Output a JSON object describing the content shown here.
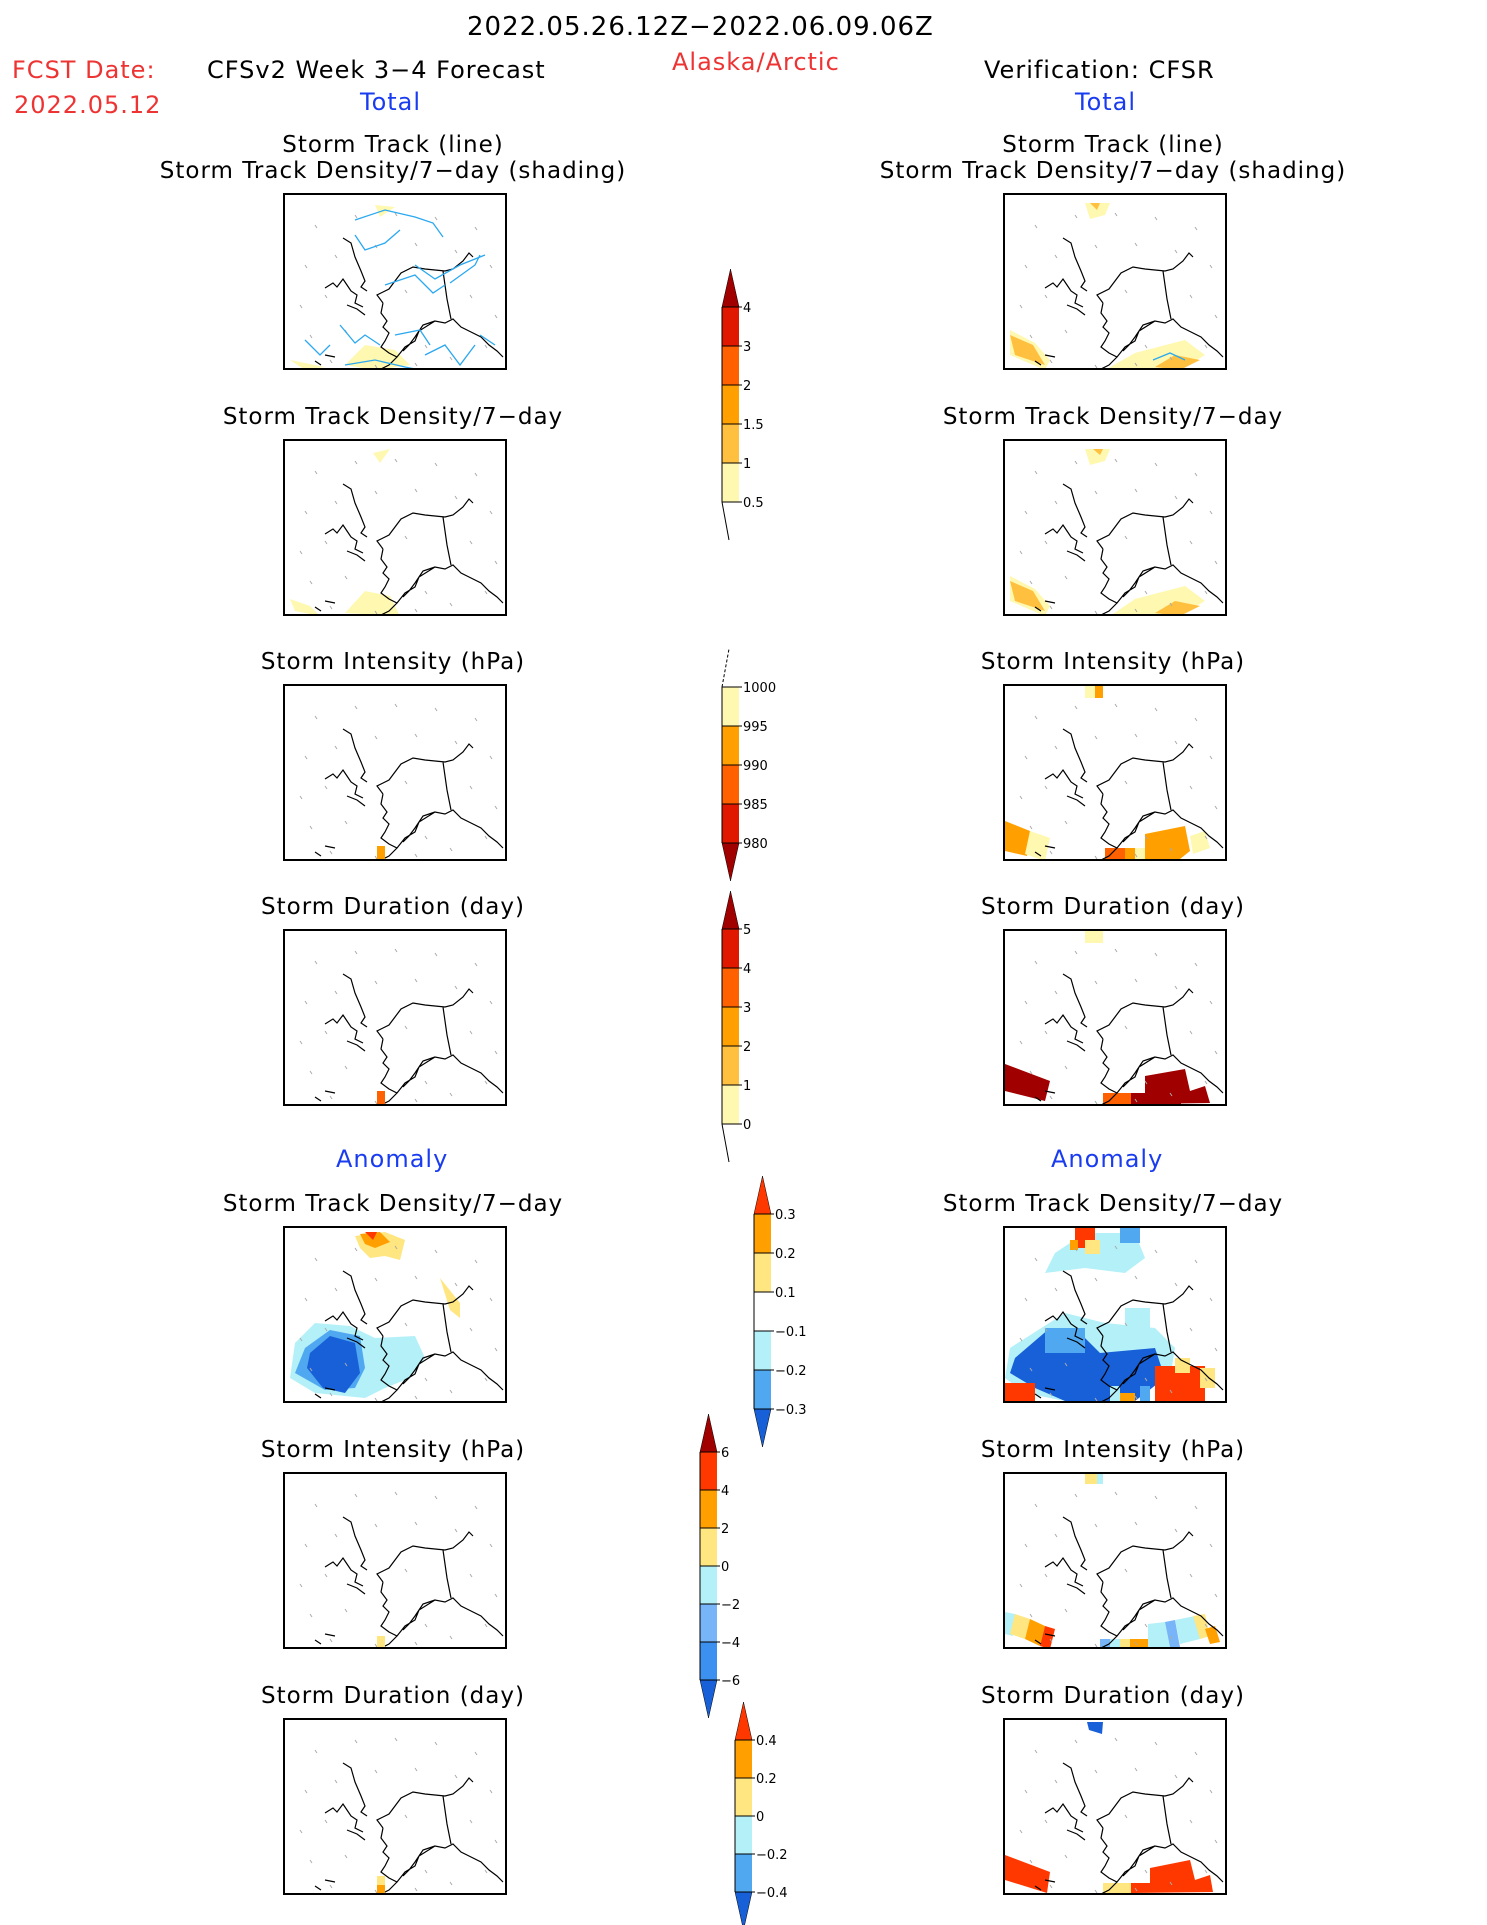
{
  "header": {
    "period": "2022.05.26.12Z−2022.06.09.06Z",
    "region": "Alaska/Arctic",
    "fcst_label": "FCST Date:",
    "fcst_date": "2022.05.12",
    "left_model": "CFSv2  Week  3−4  Forecast",
    "right_model": "Verification:  CFSR",
    "left_section": "Total",
    "right_section": "Total",
    "left_anom_section": "Anomaly",
    "right_anom_section": "Anomaly"
  },
  "panel_titles": {
    "track_line": "Storm  Track  (line)",
    "track_shading": "Storm  Track  Density/7−day  (shading)",
    "density": "Storm  Track  Density/7−day",
    "intensity": "Storm  Intensity  (hPa)",
    "duration": "Storm  Duration  (day)"
  },
  "colors": {
    "c1": "#fff8b0",
    "c2": "#ffc040",
    "c3": "#ffa000",
    "c4": "#ff6000",
    "c5": "#e01800",
    "c6": "#a00000",
    "a_pos3": "#ff3800",
    "a_pos2": "#ffa000",
    "a_pos1": "#ffe680",
    "a_neg1": "#b4f0f8",
    "a_neg2": "#50a8f0",
    "a_neg3": "#1860d8",
    "a_neg2b": "#78b4f8",
    "a_neg25": "#3c90f0",
    "track": "#2aa8f0"
  },
  "chart_data": [
    {
      "type": "colorbar",
      "name": "Storm Track Density/7-day (Total)",
      "levels": [
        "0.5",
        "1",
        "1.5",
        "2",
        "3",
        "4"
      ],
      "extend": "max"
    },
    {
      "type": "colorbar",
      "name": "Storm Intensity hPa (Total)",
      "levels": [
        "1000",
        "995",
        "990",
        "985",
        "980"
      ],
      "extend": "min"
    },
    {
      "type": "colorbar",
      "name": "Storm Duration day (Total)",
      "levels": [
        "0",
        "1",
        "2",
        "3",
        "4",
        "5"
      ],
      "extend": "max"
    },
    {
      "type": "colorbar",
      "name": "Storm Track Density/7-day (Anomaly)",
      "levels": [
        "0.3",
        "0.2",
        "0.1",
        "−0.1",
        "−0.2",
        "−0.3"
      ],
      "extend": "both"
    },
    {
      "type": "colorbar",
      "name": "Storm Intensity hPa (Anomaly)",
      "levels": [
        "6",
        "4",
        "2",
        "0",
        "−2",
        "−4",
        "−6"
      ],
      "extend": "both"
    },
    {
      "type": "colorbar",
      "name": "Storm Duration day (Anomaly)",
      "levels": [
        "0.4",
        "0.2",
        "0",
        "−0.2",
        "−0.4"
      ],
      "extend": "both"
    }
  ]
}
